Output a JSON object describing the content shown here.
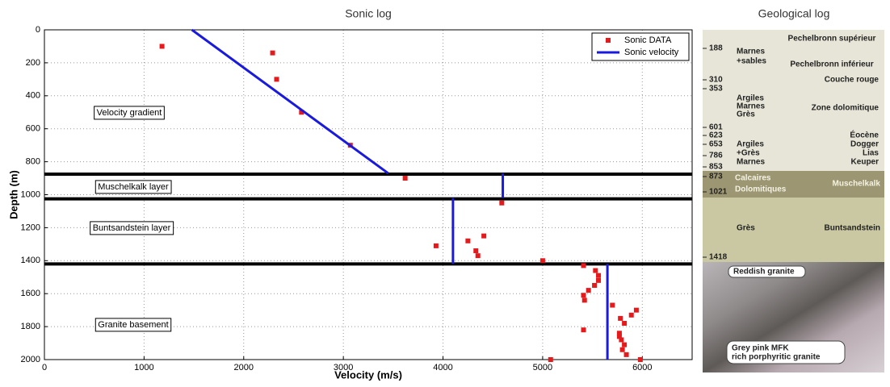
{
  "chart_data": {
    "type": "scatter-line",
    "title": "Sonic log",
    "x_label": "Velocity (m/s)",
    "y_label": "Depth (m)",
    "xlim": [
      0,
      6500
    ],
    "xticks": [
      0,
      1000,
      2000,
      3000,
      4000,
      5000,
      6000
    ],
    "ylim": [
      2000,
      0
    ],
    "yticks": [
      0,
      200,
      400,
      600,
      800,
      1000,
      1200,
      1400,
      1600,
      1800,
      2000
    ],
    "grid": true,
    "legend": "upper right",
    "series": [
      {
        "name": "Sonic DATA",
        "color": "#e41a1c",
        "type": "scatter",
        "x": [
          1180,
          2290,
          2330,
          2580,
          3070,
          3620,
          4590,
          3930,
          4250,
          4410,
          4330,
          4350,
          5000,
          5410,
          5530,
          5560,
          5560,
          5520,
          5460,
          5410,
          5420,
          5700,
          5940,
          5890,
          5780,
          5820,
          5410,
          5770,
          5770,
          5790,
          5820,
          5800,
          5840,
          5080,
          5980
        ],
        "values": [
          100,
          140,
          300,
          500,
          700,
          900,
          1050,
          1310,
          1280,
          1250,
          1340,
          1370,
          1400,
          1430,
          1460,
          1490,
          1520,
          1550,
          1580,
          1610,
          1640,
          1670,
          1700,
          1730,
          1750,
          1780,
          1820,
          1840,
          1860,
          1880,
          1910,
          1940,
          1970,
          2000,
          2000
        ]
      },
      {
        "name": "Sonic velocity",
        "color": "#1a1adf",
        "type": "line",
        "x": [
          1480,
          3450,
          null,
          4600,
          4600,
          null,
          4100,
          4100,
          null,
          5650,
          5650
        ],
        "values": [
          0,
          870,
          null,
          870,
          1020,
          null,
          1020,
          1420,
          null,
          1420,
          2000
        ]
      }
    ],
    "layer_boundaries": [
      875,
      1025,
      1420
    ],
    "annotations": [
      "Velocity gradient",
      "Muschelkalk layer",
      "Buntsandstein layer",
      "Granite basement"
    ]
  },
  "geological_log": {
    "title": "Geological log",
    "depths": [
      188,
      310,
      353,
      601,
      623,
      653,
      786,
      853,
      873,
      1021,
      1418
    ],
    "labels": [
      "Pechelbronn supérieur",
      "Marnes",
      "+sables",
      "Pechelbronn inférieur",
      "Couche rouge",
      "Argiles",
      "Marnes",
      "Grès",
      "Zone dolomitique",
      "Éocène",
      "Dogger",
      "Lias",
      "Keuper",
      "Argiles",
      "+Grès",
      "Marnes",
      "Calcaires",
      "Dolomitiques",
      "Muschelkalk",
      "Grès",
      "Buntsandstein",
      "Reddish granite",
      "Grey pink MFK",
      "rich porphyritic granite"
    ]
  }
}
